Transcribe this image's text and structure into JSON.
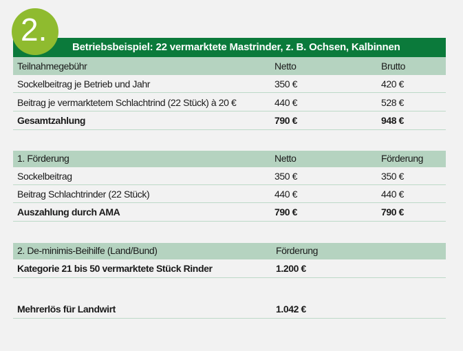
{
  "badge_number": "2.",
  "title": "Betriebsbeispiel: 22 vermarktete Mastrinder, z. B. Ochsen, Kalbinnen",
  "colors": {
    "title_bar": "#0b7a3b",
    "badge": "#8fbb2f",
    "header_row": "#b5d3c0",
    "background": "#f2f2f2"
  },
  "table1": {
    "header": [
      "Teilnahmegebühr",
      "Netto",
      "Brutto"
    ],
    "rows": [
      [
        "Sockelbeitrag je Betrieb und Jahr",
        "350 €",
        "420 €"
      ],
      [
        "Beitrag je vermarktetem Schlachtrind (22 Stück) à 20 €",
        "440 €",
        "528 €"
      ]
    ],
    "total": [
      "Gesamtzahlung",
      "790 €",
      "948 €"
    ]
  },
  "table2": {
    "header": [
      "1. Förderung",
      "Netto",
      "Förderung"
    ],
    "rows": [
      [
        "Sockelbeitrag",
        "350 €",
        "350 €"
      ],
      [
        "Beitrag Schlachtrinder (22 Stück)",
        "440 €",
        "440 €"
      ]
    ],
    "total": [
      "Auszahlung durch AMA",
      "790 €",
      "790 €"
    ]
  },
  "table3": {
    "header": [
      "2. De-minimis-Beihilfe (Land/Bund)",
      "Förderung"
    ],
    "total": [
      "Kategorie 21 bis 50 vermarktete Stück Rinder",
      "1.200 €"
    ]
  },
  "summary": [
    "Mehrerlös für Landwirt",
    "1.042 €"
  ]
}
